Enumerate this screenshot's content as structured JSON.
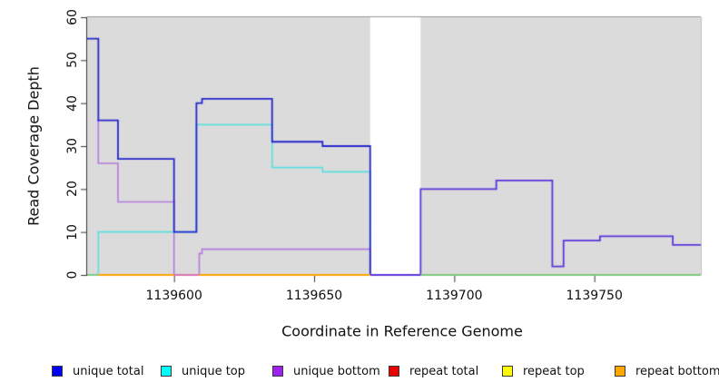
{
  "chart_data": {
    "type": "line",
    "subtype": "step",
    "title": "",
    "xlabel": "Coordinate in Reference Genome",
    "ylabel": "Read Coverage Depth",
    "xlim": [
      1139569,
      1139788
    ],
    "ylim": [
      0,
      60
    ],
    "x_ticks": [
      1139600,
      1139650,
      1139700,
      1139750
    ],
    "y_ticks": [
      0,
      10,
      20,
      30,
      40,
      50,
      60
    ],
    "grid": "off",
    "plot_bg": "#DBDBDB",
    "missing_data_region": {
      "x1": 1139670,
      "x2": 1139688,
      "color": "#FFFFFF"
    },
    "series": [
      {
        "name": "unique total",
        "color": "#2626CF",
        "steps": [
          [
            1139569,
            55
          ],
          [
            1139573,
            36
          ],
          [
            1139580,
            27
          ],
          [
            1139600,
            10
          ],
          [
            1139608,
            40
          ],
          [
            1139610,
            41
          ],
          [
            1139635,
            31
          ],
          [
            1139653,
            30
          ],
          [
            1139670,
            0
          ],
          [
            1139688,
            20
          ],
          [
            1139715,
            22
          ],
          [
            1139735,
            2
          ],
          [
            1139739,
            8
          ],
          [
            1139752,
            9
          ],
          [
            1139778,
            7
          ],
          [
            1139788,
            7
          ]
        ]
      },
      {
        "name": "unique top",
        "color": "#5CDEDE",
        "steps": [
          [
            1139569,
            0
          ],
          [
            1139573,
            10
          ],
          [
            1139608,
            35
          ],
          [
            1139635,
            25
          ],
          [
            1139653,
            24
          ],
          [
            1139670,
            0
          ],
          [
            1139788,
            0
          ]
        ]
      },
      {
        "name": "unique bottom",
        "color": "#B579DE",
        "steps": [
          [
            1139569,
            55
          ],
          [
            1139573,
            26
          ],
          [
            1139580,
            17
          ],
          [
            1139600,
            0
          ],
          [
            1139609,
            5
          ],
          [
            1139610,
            6
          ],
          [
            1139670,
            0
          ],
          [
            1139688,
            20
          ],
          [
            1139715,
            22
          ],
          [
            1139735,
            2
          ],
          [
            1139739,
            8
          ],
          [
            1139752,
            9
          ],
          [
            1139778,
            7
          ],
          [
            1139788,
            7
          ]
        ]
      },
      {
        "name": "repeat total",
        "color": "#EE0000",
        "steps": [
          [
            1139573,
            0
          ],
          [
            1139670,
            0
          ]
        ]
      },
      {
        "name": "repeat top",
        "color": "#FFFF00",
        "steps": [
          [
            1139573,
            0
          ],
          [
            1139670,
            0
          ]
        ]
      },
      {
        "name": "repeat bottom",
        "color": "#FFA500",
        "steps": [
          [
            1139573,
            0
          ],
          [
            1139670,
            0
          ]
        ]
      }
    ],
    "render_lines": [
      {
        "name": "unique-top-visible",
        "color": "#5CDEDE",
        "width": 1.6,
        "steps": [
          [
            1139569,
            0
          ],
          [
            1139573,
            10
          ],
          [
            1139608,
            35
          ],
          [
            1139635,
            25
          ],
          [
            1139653,
            24
          ],
          [
            1139670,
            0
          ]
        ]
      },
      {
        "name": "unique-bottom-visible",
        "color": "#B579DE",
        "width": 1.6,
        "steps": [
          [
            1139572.5,
            36
          ],
          [
            1139573,
            26
          ],
          [
            1139580,
            17
          ],
          [
            1139600,
            0
          ],
          [
            1139609,
            5
          ],
          [
            1139610,
            6
          ],
          [
            1139670,
            0
          ]
        ]
      },
      {
        "name": "unique-total-visible",
        "color": "#2626CF",
        "width": 1.8,
        "steps": [
          [
            1139569,
            55
          ],
          [
            1139573,
            36
          ],
          [
            1139580,
            27
          ],
          [
            1139600,
            10
          ],
          [
            1139608,
            40
          ],
          [
            1139610,
            41
          ],
          [
            1139635,
            31
          ],
          [
            1139653,
            30
          ],
          [
            1139670,
            0
          ]
        ]
      },
      {
        "name": "unique-overlap-right",
        "color": "#5B35DC",
        "width": 1.8,
        "steps": [
          [
            1139670,
            0
          ],
          [
            1139688,
            20
          ],
          [
            1139715,
            22
          ],
          [
            1139735,
            2
          ],
          [
            1139739,
            8
          ],
          [
            1139752,
            9
          ],
          [
            1139778,
            7
          ],
          [
            1139788,
            7
          ]
        ]
      }
    ],
    "baseline_segments": [
      {
        "x1": 1139569,
        "x2": 1139573,
        "color": "#7CC87C"
      },
      {
        "x1": 1139573,
        "x2": 1139600,
        "color": "#FFA500"
      },
      {
        "x1": 1139600,
        "x2": 1139609,
        "color": "#DE6CAC"
      },
      {
        "x1": 1139609,
        "x2": 1139670,
        "color": "#FFA500"
      },
      {
        "x1": 1139688,
        "x2": 1139788,
        "color": "#7CC87C"
      }
    ]
  },
  "axes": {
    "axis_color": "#333333",
    "tick_color": "#333333",
    "top_border_color": "#999999",
    "right_border_color": "#C0C0C0"
  },
  "legend": {
    "items": [
      {
        "label": "unique total",
        "color": "#0000EE"
      },
      {
        "label": "unique top",
        "color": "#00FFFF"
      },
      {
        "label": "unique bottom",
        "color": "#A020F0"
      },
      {
        "label": "repeat total",
        "color": "#EE0000"
      },
      {
        "label": "repeat top",
        "color": "#FFFF00"
      },
      {
        "label": "repeat bottom",
        "color": "#FFA500"
      }
    ]
  }
}
